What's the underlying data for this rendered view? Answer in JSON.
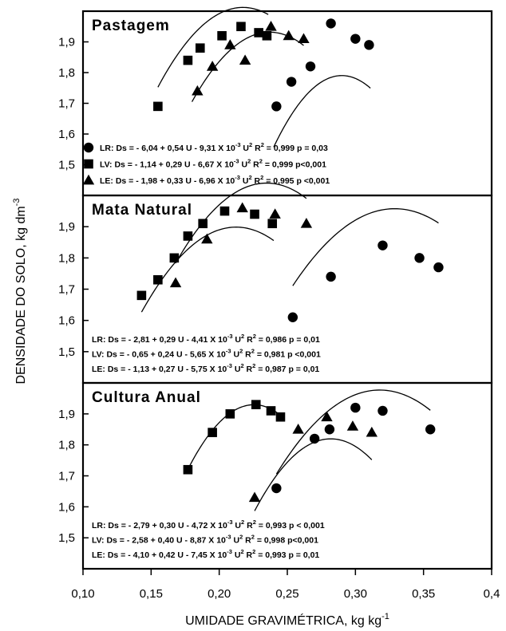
{
  "chart_data": {
    "type": "scatter",
    "xlabel": "UMIDADE GRAVIMÉTRICA, kg kg",
    "xlabel_sup": "-1",
    "ylabel": "DENSIDADE DO SOLO, kg dm",
    "ylabel_sup": "-3",
    "xlim": [
      0.1,
      0.4
    ],
    "x_ticks": [
      0.1,
      0.15,
      0.2,
      0.25,
      0.3,
      0.35,
      0.4
    ],
    "x_tick_labels": [
      "0,10",
      "0,15",
      "0,20",
      "0,25",
      "0,30",
      "0,35",
      "0,4"
    ],
    "ylim": [
      1.4,
      2.0
    ],
    "y_ticks": [
      1.5,
      1.6,
      1.7,
      1.8,
      1.9
    ],
    "y_tick_labels": [
      "1,5",
      "1,6",
      "1,7",
      "1,8",
      "1,9"
    ],
    "panels": [
      {
        "title": "Pastagem",
        "equations_position": "legend",
        "series": [
          {
            "name": "LR",
            "marker": "circle",
            "x": [
              0.242,
              0.253,
              0.267,
              0.282,
              0.3,
              0.31
            ],
            "y": [
              1.69,
              1.77,
              1.82,
              1.96,
              1.91,
              1.89
            ],
            "curve": {
              "a": -6.04,
              "b": 0.54,
              "c": -0.00931,
              "x_range": [
                0.24,
                0.311
              ]
            },
            "parts": [
              "LR: Ds = - 6,04 + 0,54 U - 9,31 X 10",
              "-3",
              " U",
              "2",
              "  R",
              "2",
              " = 0,999   p = 0,03"
            ]
          },
          {
            "name": "LV",
            "marker": "square",
            "x": [
              0.155,
              0.177,
              0.186,
              0.202,
              0.216,
              0.229,
              0.235
            ],
            "y": [
              1.69,
              1.84,
              1.88,
              1.92,
              1.95,
              1.93,
              1.92
            ],
            "curve": {
              "a": -1.14,
              "b": 0.29,
              "c": -0.00667,
              "x_range": [
                0.155,
                0.236
              ]
            },
            "parts": [
              "LV: Ds = - 1,14 + 0,29 U - 6,67 X 10",
              "-3",
              " U",
              "2",
              "  R",
              "2",
              " = 0,999   p<0,001"
            ]
          },
          {
            "name": "LE",
            "marker": "triangle",
            "x": [
              0.184,
              0.195,
              0.208,
              0.219,
              0.238,
              0.251,
              0.262
            ],
            "y": [
              1.74,
              1.82,
              1.89,
              1.84,
              1.95,
              1.92,
              1.91
            ],
            "curve": {
              "a": -1.98,
              "b": 0.33,
              "c": -0.00696,
              "x_range": [
                0.18,
                0.262
              ]
            },
            "parts": [
              "LE: Ds = - 1,98 + 0,33 U - 6,96 X 10",
              "-3",
              " U",
              "2",
              "  R",
              "2",
              " = 0,995   p <0,001"
            ]
          }
        ]
      },
      {
        "title": "Mata Natural",
        "equations_position": "bottom-left",
        "series": [
          {
            "name": "LR",
            "marker": "circle",
            "x": [
              0.254,
              0.282,
              0.32,
              0.347,
              0.361
            ],
            "y": [
              1.61,
              1.74,
              1.84,
              1.8,
              1.77
            ],
            "curve": {
              "a": -2.81,
              "b": 0.29,
              "c": -0.00441,
              "x_range": [
                0.254,
                0.361
              ]
            },
            "parts": [
              "LR: Ds = - 2,81 + 0,29 U - 4,41 X 10",
              "-3",
              " U",
              "2",
              "   R",
              "2",
              " = 0,986    p = 0,01"
            ]
          },
          {
            "name": "LV",
            "marker": "square",
            "x": [
              0.143,
              0.155,
              0.167,
              0.177,
              0.188,
              0.204,
              0.226,
              0.239
            ],
            "y": [
              1.68,
              1.73,
              1.8,
              1.87,
              1.91,
              1.95,
              1.94,
              1.91
            ],
            "curve": {
              "a": -0.65,
              "b": 0.24,
              "c": -0.00565,
              "x_range": [
                0.143,
                0.24
              ]
            },
            "parts": [
              "LV: Ds = - 0,65 + 0,24 U - 5,65 X 10",
              "-3",
              " U",
              "2",
              "   R",
              "2",
              " = 0,981    p <0,001"
            ]
          },
          {
            "name": "LE",
            "marker": "triangle",
            "x": [
              0.168,
              0.191,
              0.217,
              0.241,
              0.264
            ],
            "y": [
              1.72,
              1.86,
              1.96,
              1.94,
              1.91
            ],
            "curve": {
              "a": -1.13,
              "b": 0.27,
              "c": -0.00575,
              "x_range": [
                0.168,
                0.264
              ]
            },
            "parts": [
              "LE: Ds = - 1,13 + 0,27 U - 5,75 X 10",
              "-3",
              " U",
              "2",
              "   R",
              "2",
              " = 0,987    p = 0,01"
            ]
          }
        ]
      },
      {
        "title": "Cultura Anual",
        "equations_position": "bottom-left",
        "series": [
          {
            "name": "LR",
            "marker": "circle",
            "x": [
              0.242,
              0.27,
              0.281,
              0.3,
              0.32,
              0.355
            ],
            "y": [
              1.66,
              1.82,
              1.85,
              1.92,
              1.91,
              1.85
            ],
            "curve": {
              "a": -2.79,
              "b": 0.3,
              "c": -0.00472,
              "x_range": [
                0.242,
                0.355
              ]
            },
            "parts": [
              "LR: Ds = - 2,79 + 0,30 U - 4,72 X 10",
              "-3",
              " U",
              "2",
              "   R",
              "2",
              " = 0,993    p < 0,001"
            ]
          },
          {
            "name": "LV",
            "marker": "square",
            "x": [
              0.177,
              0.195,
              0.208,
              0.227,
              0.238,
              0.245
            ],
            "y": [
              1.72,
              1.84,
              1.9,
              1.93,
              1.91,
              1.89
            ],
            "curve": {
              "a": -2.58,
              "b": 0.4,
              "c": -0.00887,
              "x_range": [
                0.177,
                0.246
              ]
            },
            "parts": [
              "LV: Ds = - 2,58 + 0,40 U - 8,87 X 10",
              "-3",
              " U",
              "2",
              "   R",
              "2",
              " = 0,998    p<0,001"
            ]
          },
          {
            "name": "LE",
            "marker": "triangle",
            "x": [
              0.226,
              0.258,
              0.279,
              0.298,
              0.312
            ],
            "y": [
              1.63,
              1.85,
              1.89,
              1.86,
              1.84
            ],
            "curve": {
              "a": -4.1,
              "b": 0.42,
              "c": -0.00745,
              "x_range": [
                0.226,
                0.312
              ]
            },
            "parts": [
              "LE: Ds = - 4,10 + 0,42 U - 7,45 X 10",
              "-3",
              " U",
              "2",
              "   R",
              "2",
              " = 0,993    p = 0,01"
            ]
          }
        ]
      }
    ]
  }
}
